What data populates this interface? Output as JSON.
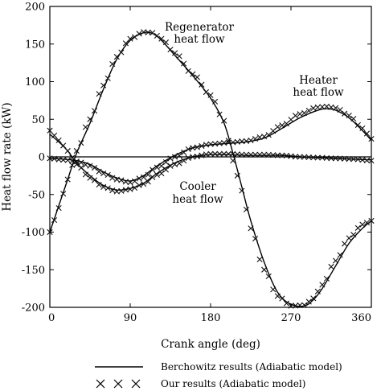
{
  "chart_data": {
    "type": "line",
    "xlabel": "Crank angle (deg)",
    "ylabel": "Heat flow rate (kW)",
    "xlim": [
      0,
      360
    ],
    "ylim": [
      -200,
      200
    ],
    "x_ticks": [
      "0",
      "90",
      "180",
      "270",
      "360"
    ],
    "y_ticks": [
      "200",
      "150",
      "100",
      "50",
      "0",
      "-50",
      "-100",
      "-150",
      "-200"
    ],
    "grid": false,
    "zero_line": true,
    "legend_position": "bottom",
    "legend": [
      {
        "symbol": "line",
        "label": "Berchowitz results (Adiabatic model)"
      },
      {
        "symbol": "x",
        "label": "Our results (Adiabatic model)"
      }
    ],
    "annotations": [
      {
        "lines": [
          "Regenerator",
          "heat flow"
        ]
      },
      {
        "lines": [
          "Heater",
          "heat flow"
        ]
      },
      {
        "lines": [
          "Cooler",
          "heat flow"
        ]
      }
    ],
    "curves": [
      {
        "label": "Regenerator heat flow",
        "berchowitz": {
          "x": [
            0,
            10,
            20,
            30,
            45,
            60,
            75,
            90,
            105,
            115,
            125,
            140,
            160,
            180,
            195,
            205,
            215,
            225,
            240,
            255,
            270,
            285,
            295,
            305,
            320,
            335,
            350,
            360
          ],
          "y": [
            -100,
            -65,
            -30,
            5,
            45,
            90,
            130,
            155,
            165,
            164,
            155,
            135,
            108,
            78,
            45,
            5,
            -40,
            -85,
            -140,
            -180,
            -196,
            -198,
            -190,
            -175,
            -145,
            -115,
            -95,
            -85
          ]
        },
        "ours": {
          "x": [
            0,
            10,
            20,
            30,
            45,
            60,
            75,
            90,
            105,
            115,
            125,
            140,
            160,
            180,
            195,
            205,
            215,
            225,
            240,
            255,
            270,
            285,
            295,
            305,
            320,
            335,
            350,
            360
          ],
          "y": [
            -100,
            -68,
            -30,
            8,
            50,
            95,
            133,
            157,
            166,
            165,
            157,
            138,
            110,
            82,
            48,
            -5,
            -45,
            -95,
            -150,
            -185,
            -198,
            -197,
            -188,
            -170,
            -138,
            -108,
            -90,
            -85
          ]
        }
      },
      {
        "label": "Heater heat flow",
        "berchowitz": {
          "x": [
            0,
            15,
            30,
            45,
            60,
            75,
            90,
            105,
            120,
            140,
            160,
            180,
            200,
            220,
            240,
            260,
            280,
            300,
            310,
            320,
            335,
            350,
            360
          ],
          "y": [
            -2,
            -3,
            -5,
            -10,
            -20,
            -28,
            -32,
            -25,
            -12,
            2,
            12,
            16,
            18,
            20,
            25,
            38,
            52,
            62,
            64,
            62,
            52,
            35,
            22
          ]
        },
        "ours": {
          "x": [
            0,
            15,
            30,
            45,
            60,
            75,
            90,
            105,
            120,
            140,
            160,
            180,
            200,
            220,
            240,
            260,
            280,
            300,
            310,
            320,
            335,
            350,
            360
          ],
          "y": [
            -2,
            -4,
            -6,
            -12,
            -22,
            -30,
            -34,
            -27,
            -14,
            0,
            12,
            17,
            19,
            21,
            27,
            42,
            57,
            66,
            67,
            65,
            55,
            38,
            24
          ]
        }
      },
      {
        "label": "Cooler heat flow",
        "berchowitz": {
          "x": [
            0,
            10,
            20,
            30,
            45,
            60,
            75,
            90,
            105,
            120,
            140,
            160,
            180,
            200,
            220,
            240,
            260,
            280,
            300,
            320,
            340,
            360
          ],
          "y": [
            30,
            20,
            8,
            -8,
            -25,
            -38,
            -44,
            -42,
            -35,
            -22,
            -8,
            0,
            3,
            3,
            2,
            2,
            2,
            0,
            -1,
            -2,
            -3,
            -4
          ]
        },
        "ours": {
          "x": [
            0,
            10,
            20,
            30,
            45,
            60,
            75,
            90,
            105,
            120,
            140,
            160,
            180,
            200,
            220,
            240,
            260,
            280,
            300,
            320,
            340,
            360
          ],
          "y": [
            35,
            22,
            8,
            -10,
            -28,
            -40,
            -46,
            -43,
            -36,
            -24,
            -10,
            0,
            4,
            4,
            3,
            3,
            2,
            0,
            -1,
            -2,
            -3,
            -5
          ]
        }
      }
    ]
  }
}
